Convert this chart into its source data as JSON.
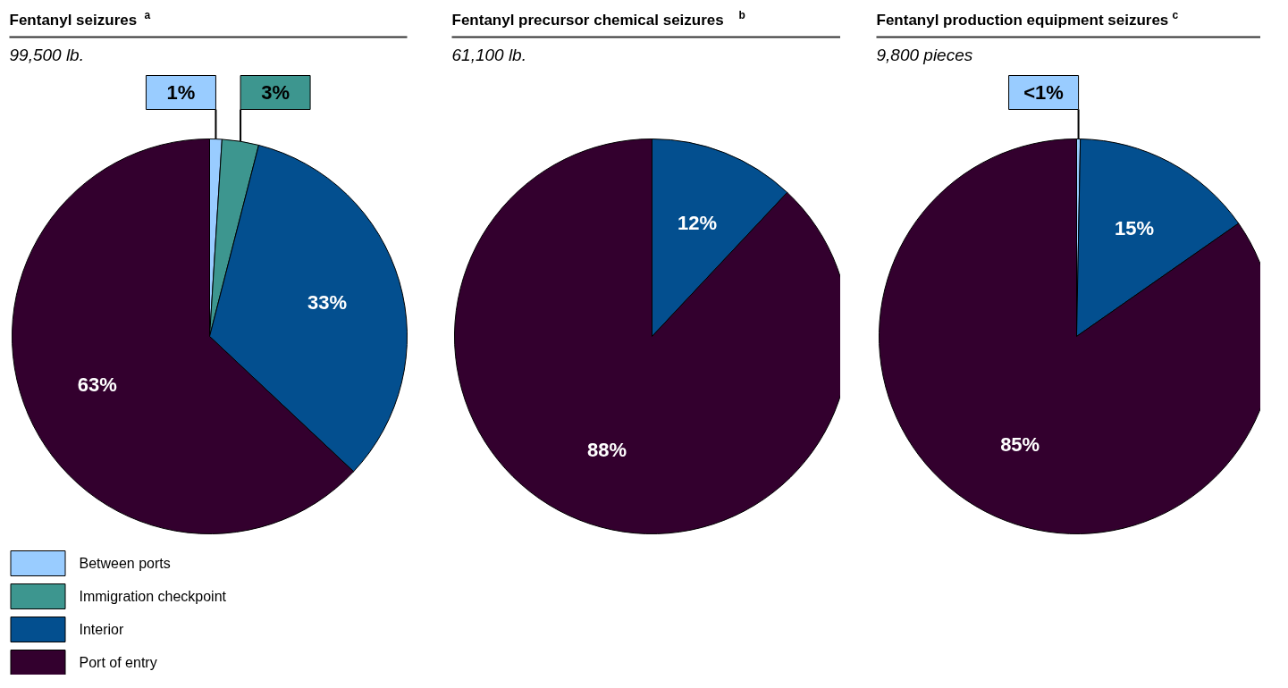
{
  "chart_data": [
    {
      "type": "pie",
      "title": "Fentanyl seizures$^{a}$",
      "subtitle": "99,500 lb.",
      "categories": [
        "Between ports",
        "Immigration checkpoint",
        "Interior",
        "Port of entry"
      ],
      "values": [
        1,
        3,
        33,
        63
      ],
      "colors": [
        "#99ccff",
        "#3d968f",
        "#034f8f",
        "#33002e"
      ],
      "value_labels": [
        "1%",
        "3%",
        "33%",
        "63%"
      ],
      "legend": "bottom left"
    },
    {
      "type": "pie",
      "title": "Fentanyl precursor chemical seizures$^{b}$",
      "subtitle": "61,100 lb.",
      "values": [
        12,
        88
      ],
      "colors": [
        "#034f8f",
        "#33002e"
      ],
      "value_labels": [
        "12%",
        "88%"
      ]
    },
    {
      "type": "pie",
      "title": "Fentanyl production equipment seizures$^{c}$",
      "subtitle": "9,800 pieces",
      "values": [
        0.3,
        15,
        84.7
      ],
      "colors": [
        "#99ccff",
        "#034f8f",
        "#33002e"
      ],
      "value_labels": [
        "<1%",
        "15%",
        "85%"
      ]
    }
  ]
}
